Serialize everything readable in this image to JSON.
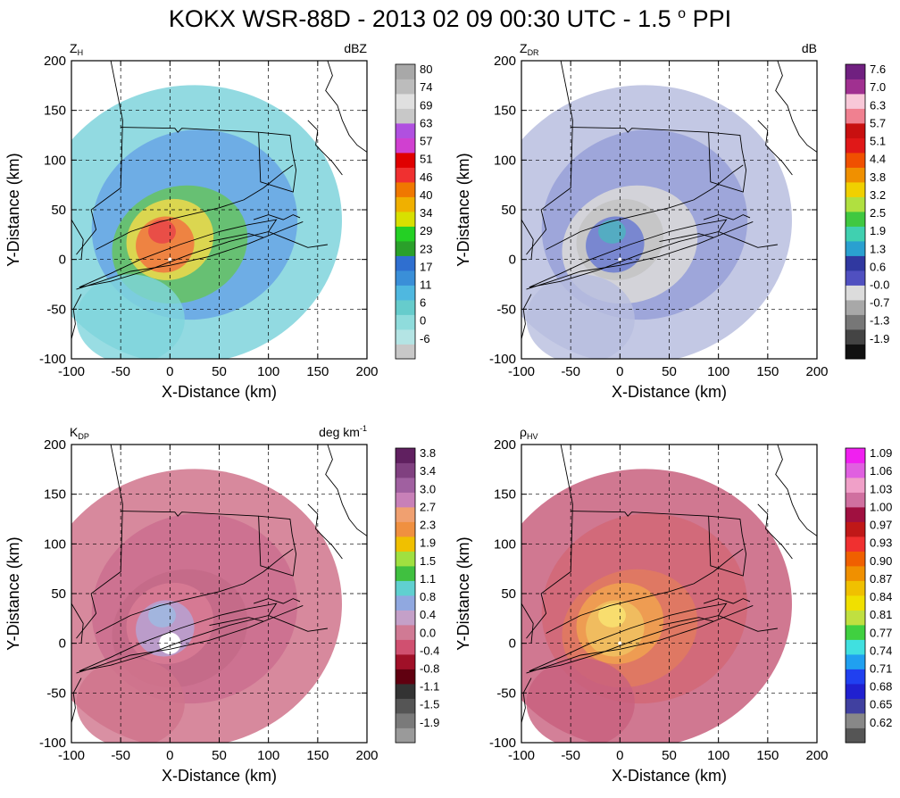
{
  "title_parts": {
    "prefix": "KOKX WSR-88D - 2013 02 09 00:30 UTC - 1.5",
    "degree": "o",
    "suffix": "PPI"
  },
  "chart_data": [
    {
      "type": "heatmap",
      "id": "zh",
      "variable": {
        "symbol": "Z",
        "sub": "H",
        "sup": ""
      },
      "units": {
        "base": "dBZ",
        "sup": ""
      },
      "xlabel": "X-Distance (km)",
      "ylabel": "Y-Distance (km)",
      "xlim": [
        -100,
        200
      ],
      "ylim": [
        -100,
        200
      ],
      "xticks": [
        "-100",
        "-50",
        "0",
        "50",
        "100",
        "150",
        "200"
      ],
      "yticks": [
        "-100",
        "-50",
        "0",
        "50",
        "100",
        "150",
        "200"
      ],
      "grid": true,
      "colorbar_ticks": [
        "-6",
        "0",
        "6",
        "11",
        "17",
        "23",
        "29",
        "34",
        "40",
        "46",
        "51",
        "57",
        "63",
        "69",
        "74",
        "80"
      ],
      "colorbar_colors": [
        "#c8c8c8",
        "#b4e4e4",
        "#8fdcdc",
        "#66cccc",
        "#4fb8e0",
        "#3a8fd8",
        "#2f6fd0",
        "#2aa02a",
        "#24d024",
        "#d8e000",
        "#f0b000",
        "#f07800",
        "#f03030",
        "#e00000",
        "#d040d0",
        "#b050e0",
        "#c8c8c8",
        "#e0e0e0",
        "#bcbcbc",
        "#a8a8a8"
      ],
      "field_colors": {
        "outer": "#7fd4dc",
        "mid": "#6aa7e6",
        "inner": "#66c266",
        "core": "#e8d84c",
        "hot": "#f07a40",
        "max": "#e84848"
      }
    },
    {
      "type": "heatmap",
      "id": "zdr",
      "variable": {
        "symbol": "Z",
        "sub": "DR",
        "sup": ""
      },
      "units": {
        "base": "dB",
        "sup": ""
      },
      "xlabel": "X-Distance (km)",
      "ylabel": "Y-Distance (km)",
      "xlim": [
        -100,
        200
      ],
      "ylim": [
        -100,
        200
      ],
      "xticks": [
        "-100",
        "-50",
        "0",
        "50",
        "100",
        "150",
        "200"
      ],
      "yticks": [
        "-100",
        "-50",
        "0",
        "50",
        "100",
        "150",
        "200"
      ],
      "grid": true,
      "colorbar_ticks": [
        "-1.9",
        "-1.3",
        "-0.7",
        "-0.0",
        "0.6",
        "1.3",
        "1.9",
        "2.5",
        "3.2",
        "3.8",
        "4.4",
        "5.1",
        "5.7",
        "6.3",
        "7.0",
        "7.6"
      ],
      "colorbar_colors": [
        "#111111",
        "#444444",
        "#777777",
        "#a8a8a8",
        "#dcdcdc",
        "#5050c0",
        "#3038a0",
        "#2aa0d0",
        "#40d0b0",
        "#40c840",
        "#b0e040",
        "#f0d000",
        "#f09000",
        "#f05000",
        "#e01818",
        "#c81010",
        "#f08090",
        "#f8c8d8",
        "#a03090",
        "#702080"
      ],
      "field_colors": {
        "outer": "#b8bedf",
        "mid": "#9aa2d8",
        "inner": "#d8d8d8",
        "core": "#c4c4c4",
        "hot": "#7080d0",
        "max": "#50b0c0"
      }
    },
    {
      "type": "heatmap",
      "id": "kdp",
      "variable": {
        "symbol": "K",
        "sub": "DP",
        "sup": ""
      },
      "units": {
        "base": "deg km",
        "sup": "-1"
      },
      "xlabel": "X-Distance (km)",
      "ylabel": "Y-Distance (km)",
      "xlim": [
        -100,
        200
      ],
      "ylim": [
        -100,
        200
      ],
      "xticks": [
        "-100",
        "-50",
        "0",
        "50",
        "100",
        "150",
        "200"
      ],
      "yticks": [
        "-100",
        "-50",
        "0",
        "50",
        "100",
        "150",
        "200"
      ],
      "grid": true,
      "colorbar_ticks": [
        "-1.9",
        "-1.5",
        "-1.1",
        "-0.8",
        "-0.4",
        "0.0",
        "0.4",
        "0.8",
        "1.1",
        "1.5",
        "1.9",
        "2.3",
        "2.7",
        "3.0",
        "3.4",
        "3.8"
      ],
      "colorbar_colors": [
        "#9a9a9a",
        "#7a7a7a",
        "#555555",
        "#333333",
        "#600010",
        "#a01028",
        "#d05070",
        "#d07a94",
        "#c4a0c8",
        "#90a8e0",
        "#60d0d0",
        "#40c040",
        "#a0e040",
        "#f0c000",
        "#f09040",
        "#f0a070",
        "#c880b8",
        "#a060a0",
        "#804080",
        "#602060"
      ],
      "field_colors": {
        "outer": "#d0748c",
        "mid": "#cc7090",
        "inner": "#c46a88",
        "core": "#d77b95",
        "hot": "#b8a0d0",
        "max": "#a0b8e0"
      }
    },
    {
      "type": "heatmap",
      "id": "rhohv",
      "variable": {
        "symbol": "ρ",
        "sub": "HV",
        "sup": ""
      },
      "units": {
        "base": "",
        "sup": ""
      },
      "xlabel": "X-Distance (km)",
      "ylabel": "Y-Distance (km)",
      "xlim": [
        -100,
        200
      ],
      "ylim": [
        -100,
        200
      ],
      "xticks": [
        "-100",
        "-50",
        "0",
        "50",
        "100",
        "150",
        "200"
      ],
      "yticks": [
        "-100",
        "-50",
        "0",
        "50",
        "100",
        "150",
        "200"
      ],
      "grid": true,
      "colorbar_ticks": [
        "0.62",
        "0.65",
        "0.68",
        "0.71",
        "0.74",
        "0.77",
        "0.81",
        "0.84",
        "0.87",
        "0.90",
        "0.93",
        "0.97",
        "1.00",
        "1.03",
        "1.06",
        "1.09"
      ],
      "colorbar_colors": [
        "#555555",
        "#888888",
        "#4040a0",
        "#2020d0",
        "#2040f0",
        "#20a0f0",
        "#40e0e0",
        "#40d040",
        "#c0e040",
        "#f0e000",
        "#f0c000",
        "#f09000",
        "#f06000",
        "#f03030",
        "#c01818",
        "#a01040",
        "#d070a0",
        "#f0a0c8",
        "#e060e0",
        "#f020f0"
      ],
      "field_colors": {
        "outer": "#c8607e",
        "mid": "#d26878",
        "inner": "#e07a60",
        "core": "#f0a050",
        "hot": "#f0c060",
        "max": "#f8e070"
      }
    }
  ]
}
